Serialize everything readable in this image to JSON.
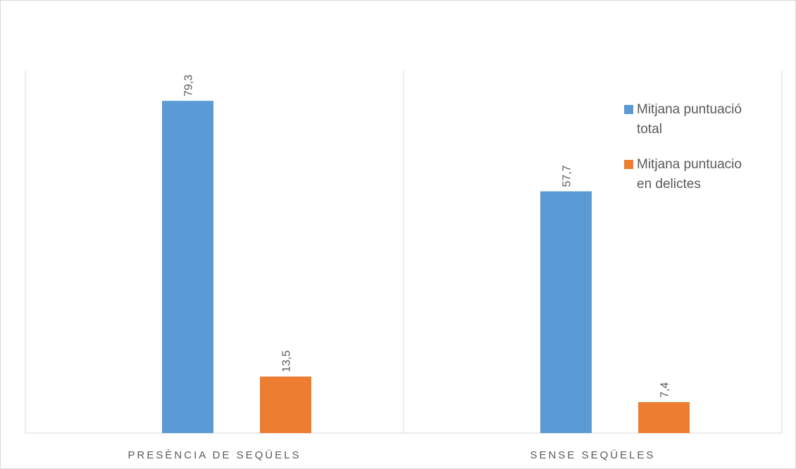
{
  "chart_data": {
    "type": "bar",
    "categories": [
      "PRESÈNCIA DE SEQÜELS",
      "SENSE SEQÜELES"
    ],
    "series": [
      {
        "name": "Mitjana puntuació total",
        "values": [
          79.3,
          57.7
        ],
        "labels": [
          "79,3",
          "57,7"
        ],
        "color": "#5b9bd5"
      },
      {
        "name": "Mitjana puntuacio en delictes",
        "values": [
          13.5,
          7.4
        ],
        "labels": [
          "13,5",
          "7,4"
        ],
        "color": "#ed7d31"
      }
    ],
    "legend": {
      "placement": "top-right",
      "lines": [
        [
          "Mitjana puntuació",
          "total"
        ],
        [
          "Mitjana puntuacio",
          "en delictes"
        ]
      ]
    },
    "ylim": [
      0,
      100
    ],
    "grid": false,
    "title": "",
    "xlabel": "",
    "ylabel": ""
  }
}
